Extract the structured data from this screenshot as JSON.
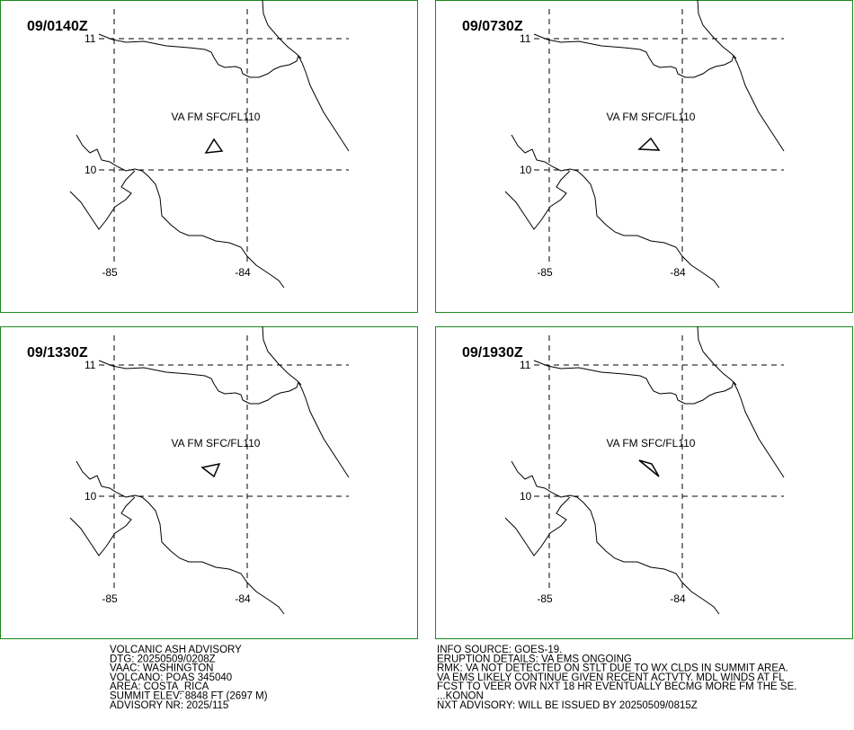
{
  "panels": [
    {
      "time": "09/0140Z",
      "label": "VA FM SFC/FL110",
      "lat_labels": [
        "11",
        "10"
      ],
      "lon_labels": [
        "-85",
        "-84"
      ]
    },
    {
      "time": "09/0730Z",
      "label": "VA FM SFC/FL110",
      "lat_labels": [
        "11",
        "10"
      ],
      "lon_labels": [
        "-85",
        "-84"
      ]
    },
    {
      "time": "09/1330Z",
      "label": "VA FM SFC/FL110",
      "lat_labels": [
        "11",
        "10"
      ],
      "lon_labels": [
        "-85",
        "-84"
      ]
    },
    {
      "time": "09/1930Z",
      "label": "VA FM SFC/FL110",
      "lat_labels": [
        "11",
        "10"
      ],
      "lon_labels": [
        "-85",
        "-84"
      ]
    }
  ],
  "footer": {
    "left": [
      "VOLCANIC ASH ADVISORY",
      "DTG: 20250509/0208Z",
      "VAAC: WASHINGTON",
      "VOLCANO: POAS 345040",
      "AREA: COSTA_RICA",
      "SUMMIT ELEV: 8848 FT (2697 M)",
      "ADVISORY NR: 2025/115"
    ],
    "right": [
      "INFO SOURCE: GOES-19.",
      "ERUPTION DETAILS: VA EMS ONGOING",
      "RMK: VA NOT DETECTED ON STLT DUE TO WX CLDS IN SUMMIT AREA.",
      "VA EMS LIKELY CONTINUE GIVEN RECENT ACTVTY. MDL WINDS AT FL",
      "FCST TO VEER OVR NXT 18 HR EVENTUALLY BECMG MORE FM THE SE.",
      "...KONON",
      "NXT ADVISORY: WILL BE ISSUED BY 20250509/0815Z"
    ]
  }
}
